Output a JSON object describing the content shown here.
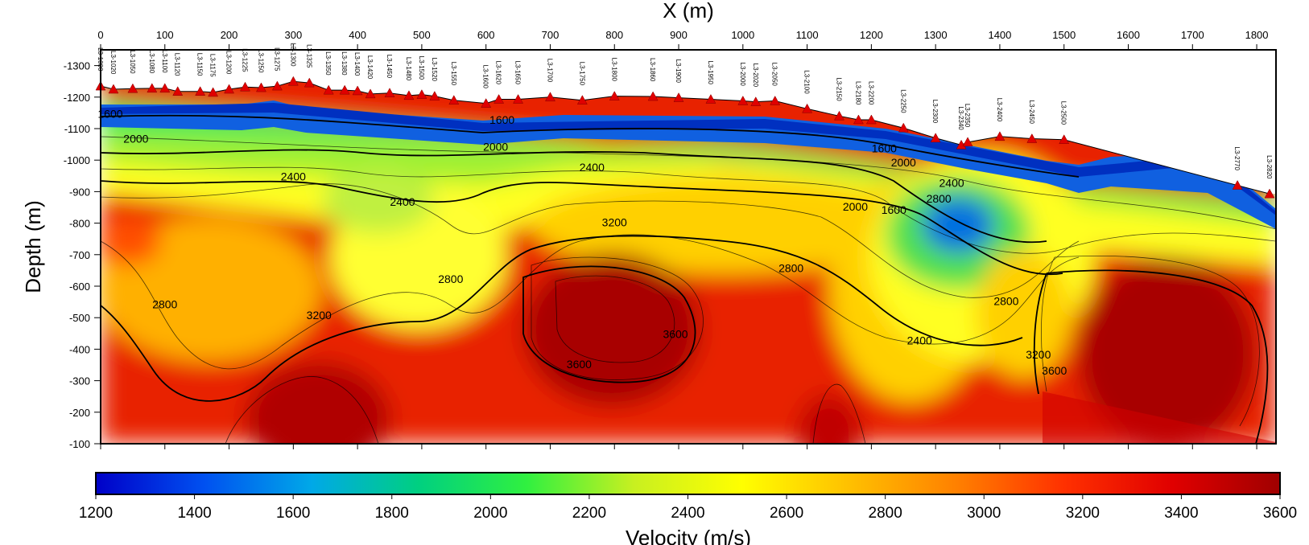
{
  "chart_data": {
    "type": "heatmap",
    "title": "",
    "xlabel": "X (m)",
    "ylabel": "Depth (m)",
    "colorbar_label": "Velocity (m/s)",
    "xlim": [
      0,
      1830
    ],
    "ylim": [
      -1350,
      -100
    ],
    "x_ticks": [
      "0",
      "100",
      "200",
      "300",
      "400",
      "500",
      "600",
      "700",
      "800",
      "900",
      "1000",
      "1100",
      "1200",
      "1300",
      "1400",
      "1500",
      "1600",
      "1700",
      "1800"
    ],
    "y_ticks": [
      "-1300",
      "-1200",
      "-1100",
      "-1000",
      "-900",
      "-800",
      "-700",
      "-600",
      "-500",
      "-400",
      "-300",
      "-200",
      "-100"
    ],
    "colorbar_range": [
      1200,
      3600
    ],
    "colorbar_ticks": [
      "1200",
      "1400",
      "1600",
      "1800",
      "2000",
      "2200",
      "2400",
      "2600",
      "2800",
      "3000",
      "3200",
      "3400",
      "3600"
    ],
    "colormap": [
      "#0000c8",
      "#0050f0",
      "#00a8e8",
      "#00d080",
      "#30f040",
      "#c8f020",
      "#ffff00",
      "#ffc000",
      "#ff8000",
      "#ff3000",
      "#e00000",
      "#a00000"
    ],
    "stations": [
      {
        "name": "L3-1000",
        "x": 0,
        "z": -1235
      },
      {
        "name": "L3-1020",
        "x": 20,
        "z": -1225
      },
      {
        "name": "L3-1050",
        "x": 50,
        "z": -1227
      },
      {
        "name": "L3-1080",
        "x": 80,
        "z": -1228
      },
      {
        "name": "L3-1100",
        "x": 100,
        "z": -1228
      },
      {
        "name": "L3-1120",
        "x": 120,
        "z": -1218
      },
      {
        "name": "L3-1150",
        "x": 155,
        "z": -1218
      },
      {
        "name": "L3-1175",
        "x": 175,
        "z": -1215
      },
      {
        "name": "L3-1200",
        "x": 200,
        "z": -1225
      },
      {
        "name": "L3-1225",
        "x": 225,
        "z": -1232
      },
      {
        "name": "L3-1250",
        "x": 250,
        "z": -1230
      },
      {
        "name": "L3-1275",
        "x": 275,
        "z": -1235
      },
      {
        "name": "L3-1300",
        "x": 300,
        "z": -1250
      },
      {
        "name": "L3-1325",
        "x": 325,
        "z": -1245
      },
      {
        "name": "L3-1350",
        "x": 355,
        "z": -1222
      },
      {
        "name": "L3-1380",
        "x": 380,
        "z": -1222
      },
      {
        "name": "L3-1400",
        "x": 400,
        "z": -1220
      },
      {
        "name": "L3-1420",
        "x": 420,
        "z": -1210
      },
      {
        "name": "L3-1450",
        "x": 450,
        "z": -1213
      },
      {
        "name": "L3-1480",
        "x": 480,
        "z": -1205
      },
      {
        "name": "L3-1500",
        "x": 500,
        "z": -1208
      },
      {
        "name": "L3-1520",
        "x": 520,
        "z": -1203
      },
      {
        "name": "L3-1550",
        "x": 550,
        "z": -1190
      },
      {
        "name": "L3-1600",
        "x": 600,
        "z": -1180
      },
      {
        "name": "L3-1620",
        "x": 620,
        "z": -1193
      },
      {
        "name": "L3-1650",
        "x": 650,
        "z": -1193
      },
      {
        "name": "L3-1700",
        "x": 700,
        "z": -1200
      },
      {
        "name": "L3-1750",
        "x": 750,
        "z": -1190
      },
      {
        "name": "L3-1800",
        "x": 800,
        "z": -1203
      },
      {
        "name": "L3-1860",
        "x": 860,
        "z": -1202
      },
      {
        "name": "L3-1900",
        "x": 900,
        "z": -1198
      },
      {
        "name": "L3-1950",
        "x": 950,
        "z": -1193
      },
      {
        "name": "L3-2000",
        "x": 1000,
        "z": -1188
      },
      {
        "name": "L3-2020",
        "x": 1020,
        "z": -1185
      },
      {
        "name": "L3-2050",
        "x": 1050,
        "z": -1188
      },
      {
        "name": "L3-2100",
        "x": 1100,
        "z": -1163
      },
      {
        "name": "L3-2150",
        "x": 1150,
        "z": -1140
      },
      {
        "name": "L3-2180",
        "x": 1180,
        "z": -1128
      },
      {
        "name": "L3-2200",
        "x": 1200,
        "z": -1128
      },
      {
        "name": "L3-2250",
        "x": 1250,
        "z": -1102
      },
      {
        "name": "L3-2300",
        "x": 1300,
        "z": -1070
      },
      {
        "name": "L3-2340",
        "x": 1340,
        "z": -1048
      },
      {
        "name": "L3-2350",
        "x": 1350,
        "z": -1057
      },
      {
        "name": "L3-2400",
        "x": 1400,
        "z": -1075
      },
      {
        "name": "L3-2450",
        "x": 1450,
        "z": -1068
      },
      {
        "name": "L3-2500",
        "x": 1500,
        "z": -1065
      },
      {
        "name": "L3-2770",
        "x": 1770,
        "z": -920
      },
      {
        "name": "L3-2820",
        "x": 1820,
        "z": -893
      }
    ],
    "contour_labels": [
      {
        "text": "1600",
        "x": 15,
        "z": -1135
      },
      {
        "text": "2000",
        "x": 55,
        "z": -1055
      },
      {
        "text": "2400",
        "x": 300,
        "z": -935
      },
      {
        "text": "2400",
        "x": 470,
        "z": -855
      },
      {
        "text": "2800",
        "x": 100,
        "z": -530
      },
      {
        "text": "3200",
        "x": 340,
        "z": -495
      },
      {
        "text": "2000",
        "x": 615,
        "z": -1030
      },
      {
        "text": "1600",
        "x": 625,
        "z": -1115
      },
      {
        "text": "2400",
        "x": 765,
        "z": -965
      },
      {
        "text": "3200",
        "x": 800,
        "z": -790
      },
      {
        "text": "2800",
        "x": 545,
        "z": -610
      },
      {
        "text": "3600",
        "x": 895,
        "z": -435
      },
      {
        "text": "3600",
        "x": 745,
        "z": -340
      },
      {
        "text": "2800",
        "x": 1075,
        "z": -645
      },
      {
        "text": "2000",
        "x": 1175,
        "z": -840
      },
      {
        "text": "1600",
        "x": 1220,
        "z": -1025
      },
      {
        "text": "2000",
        "x": 1250,
        "z": -980
      },
      {
        "text": "2400",
        "x": 1325,
        "z": -915
      },
      {
        "text": "2800",
        "x": 1305,
        "z": -865
      },
      {
        "text": "1600",
        "x": 1235,
        "z": -830
      },
      {
        "text": "2400",
        "x": 1275,
        "z": -415
      },
      {
        "text": "2800",
        "x": 1410,
        "z": -540
      },
      {
        "text": "3200",
        "x": 1460,
        "z": -370
      },
      {
        "text": "3600",
        "x": 1485,
        "z": -320
      }
    ]
  }
}
